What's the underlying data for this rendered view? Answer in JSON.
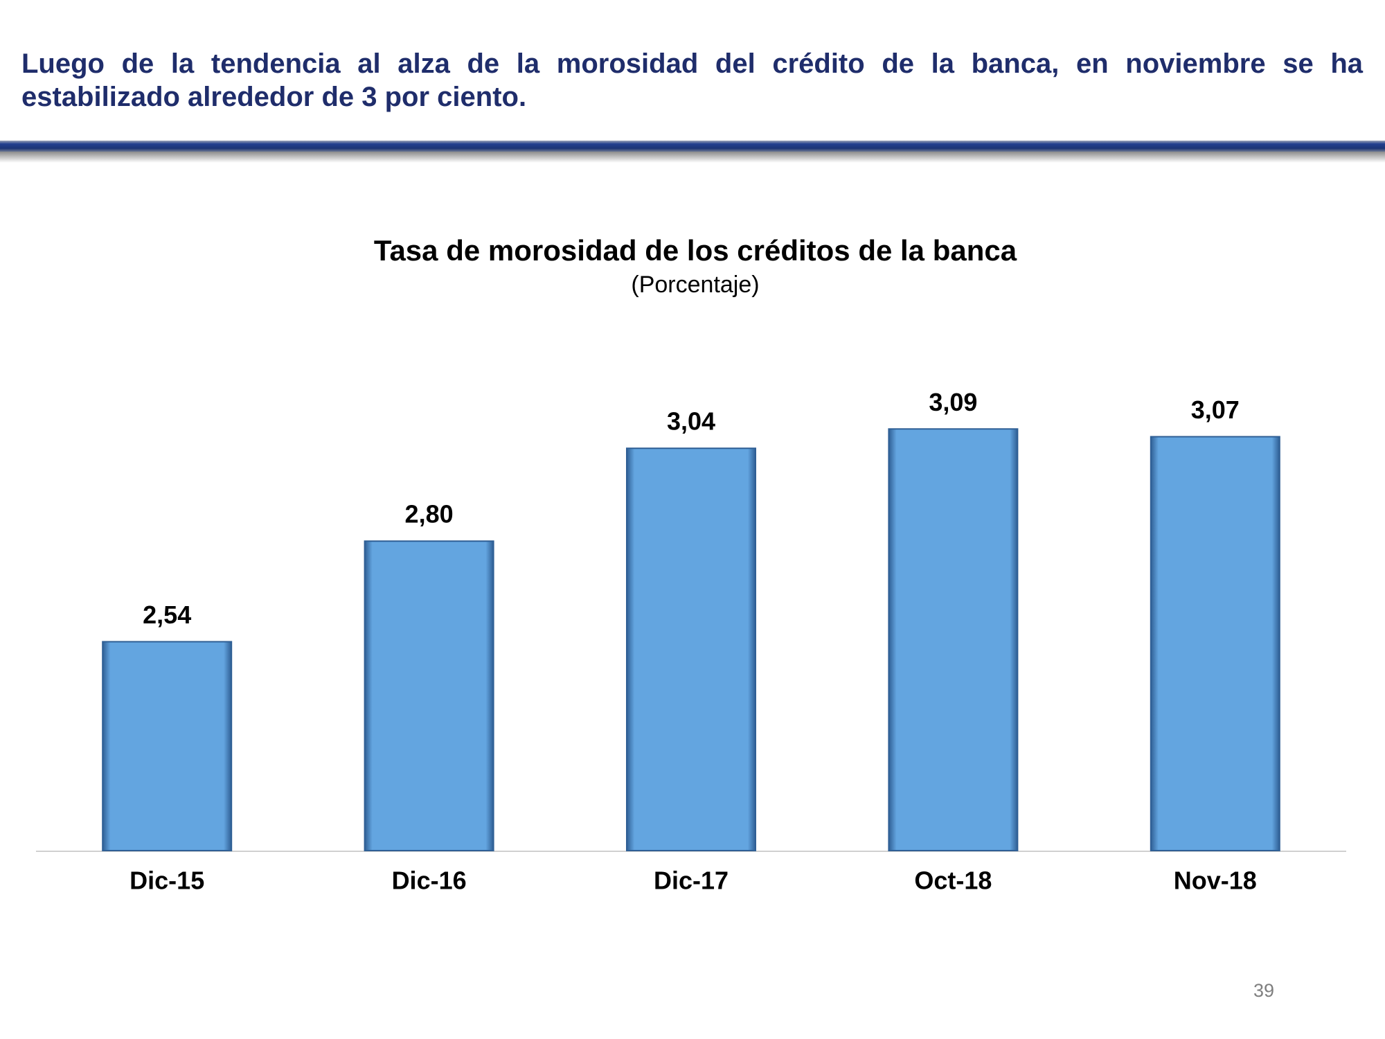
{
  "header": {
    "title": "Luego de la tendencia al alza de la morosidad del crédito de la banca, en noviembre se ha estabilizado alrededor de 3 por ciento."
  },
  "chart_data": {
    "type": "bar",
    "title": "Tasa de morosidad de los créditos de la banca",
    "subtitle": "(Porcentaje)",
    "categories": [
      "Dic-15",
      "Dic-16",
      "Dic-17",
      "Oct-18",
      "Nov-18"
    ],
    "values": [
      2.54,
      2.8,
      3.04,
      3.09,
      3.07
    ],
    "value_labels": [
      "2,54",
      "2,80",
      "3,04",
      "3,09",
      "3,07"
    ],
    "color": "#63a5e0",
    "ylim": [
      2,
      3.3
    ]
  },
  "footer": {
    "page_number": "39"
  }
}
